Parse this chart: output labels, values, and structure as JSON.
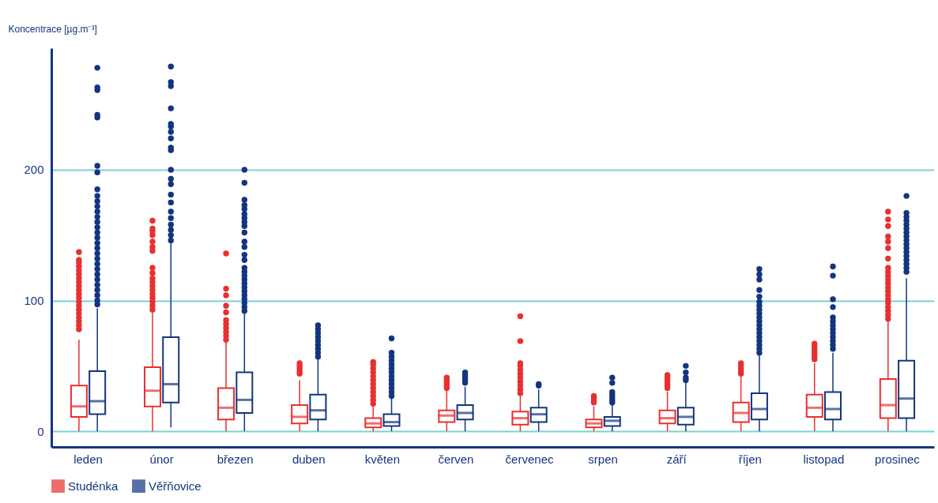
{
  "chart_data": {
    "type": "box",
    "ylabel": "Koncentrace [µg.m⁻³]",
    "categories": [
      "leden",
      "únor",
      "březen",
      "duben",
      "květen",
      "červen",
      "červenec",
      "srpen",
      "září",
      "říjen",
      "listopad",
      "prosinec"
    ],
    "ylim": [
      -12,
      293
    ],
    "yticks": [
      0,
      100,
      200
    ],
    "grid": "y",
    "legend": "bottom",
    "series": [
      {
        "name": "Studénka",
        "color": "#e8302f",
        "boxes": [
          {
            "low": 0,
            "q1": 11,
            "median": 19,
            "q3": 35,
            "high": 70,
            "outliers": [
              78,
              81,
              84,
              87,
              90,
              93,
              96,
              99,
              102,
              105,
              108,
              111,
              114,
              117,
              120,
              123,
              126,
              129,
              131,
              137
            ]
          },
          {
            "low": 0,
            "q1": 19,
            "median": 31,
            "q3": 49,
            "high": 91,
            "outliers": [
              93,
              96,
              99,
              102,
              105,
              108,
              111,
              114,
              117,
              121,
              125,
              138,
              141,
              145,
              150,
              153,
              155,
              161
            ]
          },
          {
            "low": 0,
            "q1": 9,
            "median": 18,
            "q3": 33,
            "high": 68,
            "outliers": [
              70,
              73,
              76,
              79,
              82,
              85,
              91,
              96,
              104,
              109,
              136
            ]
          },
          {
            "low": 0,
            "q1": 6,
            "median": 11,
            "q3": 20,
            "high": 39,
            "outliers": [
              44,
              46,
              48,
              50,
              52
            ]
          },
          {
            "low": 0,
            "q1": 3,
            "median": 6,
            "q3": 10,
            "high": 19,
            "outliers": [
              21,
              24,
              27,
              30,
              33,
              36,
              39,
              42,
              45,
              48,
              51,
              53
            ]
          },
          {
            "low": 0,
            "q1": 7,
            "median": 12,
            "q3": 16,
            "high": 31,
            "outliers": [
              33,
              35,
              37,
              39,
              41
            ]
          },
          {
            "low": 0,
            "q1": 5,
            "median": 10,
            "q3": 15,
            "high": 27,
            "outliers": [
              29,
              32,
              35,
              38,
              41,
              44,
              47,
              50,
              52,
              69,
              88
            ]
          },
          {
            "low": 0,
            "q1": 3,
            "median": 6,
            "q3": 9,
            "high": 19,
            "outliers": [
              22,
              24,
              26,
              27
            ]
          },
          {
            "low": 0,
            "q1": 6,
            "median": 10,
            "q3": 16,
            "high": 30,
            "outliers": [
              33,
              35,
              37,
              39,
              41,
              43
            ]
          },
          {
            "low": 0,
            "q1": 7,
            "median": 14,
            "q3": 22,
            "high": 42,
            "outliers": [
              44,
              46,
              48,
              50,
              52
            ]
          },
          {
            "low": 0,
            "q1": 11,
            "median": 18,
            "q3": 28,
            "high": 52,
            "outliers": [
              55,
              57,
              59,
              61,
              63,
              65,
              67
            ]
          },
          {
            "low": 0,
            "q1": 10,
            "median": 20,
            "q3": 40,
            "high": 84,
            "outliers": [
              86,
              89,
              92,
              95,
              98,
              101,
              104,
              107,
              110,
              113,
              116,
              119,
              122,
              125,
              132,
              140,
              145,
              149,
              157,
              162,
              168
            ]
          }
        ]
      },
      {
        "name": "Věřňovice",
        "color": "#13357f",
        "boxes": [
          {
            "low": 0,
            "q1": 13,
            "median": 23,
            "q3": 46,
            "high": 94,
            "outliers": [
              97,
              100,
              104,
              108,
              112,
              116,
              120,
              124,
              128,
              132,
              136,
              140,
              144,
              148,
              152,
              156,
              160,
              164,
              168,
              172,
              176,
              180,
              185,
              198,
              203,
              240,
              242,
              261,
              263,
              278
            ]
          },
          {
            "low": 3,
            "q1": 22,
            "median": 36,
            "q3": 72,
            "high": 144,
            "outliers": [
              146,
              150,
              154,
              158,
              163,
              168,
              175,
              181,
              189,
              193,
              200,
              215,
              217,
              224,
              229,
              233,
              235,
              247,
              264,
              267,
              279
            ]
          },
          {
            "low": 0,
            "q1": 14,
            "median": 24,
            "q3": 45,
            "high": 90,
            "outliers": [
              92,
              95,
              98,
              101,
              104,
              107,
              110,
              113,
              116,
              119,
              122,
              125,
              131,
              135,
              141,
              145,
              152,
              157,
              160,
              163,
              166,
              170,
              173,
              177,
              190,
              200
            ]
          },
          {
            "low": 0,
            "q1": 9,
            "median": 16,
            "q3": 28,
            "high": 55,
            "outliers": [
              57,
              60,
              63,
              66,
              69,
              72,
              75,
              78,
              81
            ]
          },
          {
            "low": 0,
            "q1": 4,
            "median": 7,
            "q3": 13,
            "high": 25,
            "outliers": [
              27,
              30,
              33,
              36,
              39,
              42,
              45,
              48,
              51,
              54,
              57,
              60,
              71
            ]
          },
          {
            "low": 0,
            "q1": 9,
            "median": 14,
            "q3": 20,
            "high": 34,
            "outliers": [
              37,
              39,
              41,
              43,
              45
            ]
          },
          {
            "low": 0,
            "q1": 7,
            "median": 13,
            "q3": 18,
            "high": 32,
            "outliers": [
              35,
              36
            ]
          },
          {
            "low": 0,
            "q1": 4,
            "median": 8,
            "q3": 11,
            "high": 20,
            "outliers": [
              22,
              24,
              26,
              28,
              30,
              37,
              41
            ]
          },
          {
            "low": 0,
            "q1": 5,
            "median": 11,
            "q3": 18,
            "high": 37,
            "outliers": [
              39,
              41,
              45,
              50
            ]
          },
          {
            "low": 0,
            "q1": 9,
            "median": 17,
            "q3": 29,
            "high": 58,
            "outliers": [
              60,
              63,
              66,
              69,
              72,
              75,
              78,
              81,
              84,
              87,
              90,
              93,
              96,
              99,
              103,
              108,
              116,
              120,
              124
            ]
          },
          {
            "low": 0,
            "q1": 9,
            "median": 17,
            "q3": 30,
            "high": 60,
            "outliers": [
              63,
              66,
              69,
              72,
              75,
              78,
              81,
              84,
              87,
              95,
              101,
              119,
              126
            ]
          },
          {
            "low": 0,
            "q1": 10,
            "median": 25,
            "q3": 54,
            "high": 117,
            "outliers": [
              122,
              125,
              128,
              131,
              134,
              137,
              140,
              143,
              146,
              149,
              152,
              155,
              158,
              161,
              164,
              167,
              180
            ]
          }
        ]
      }
    ]
  }
}
